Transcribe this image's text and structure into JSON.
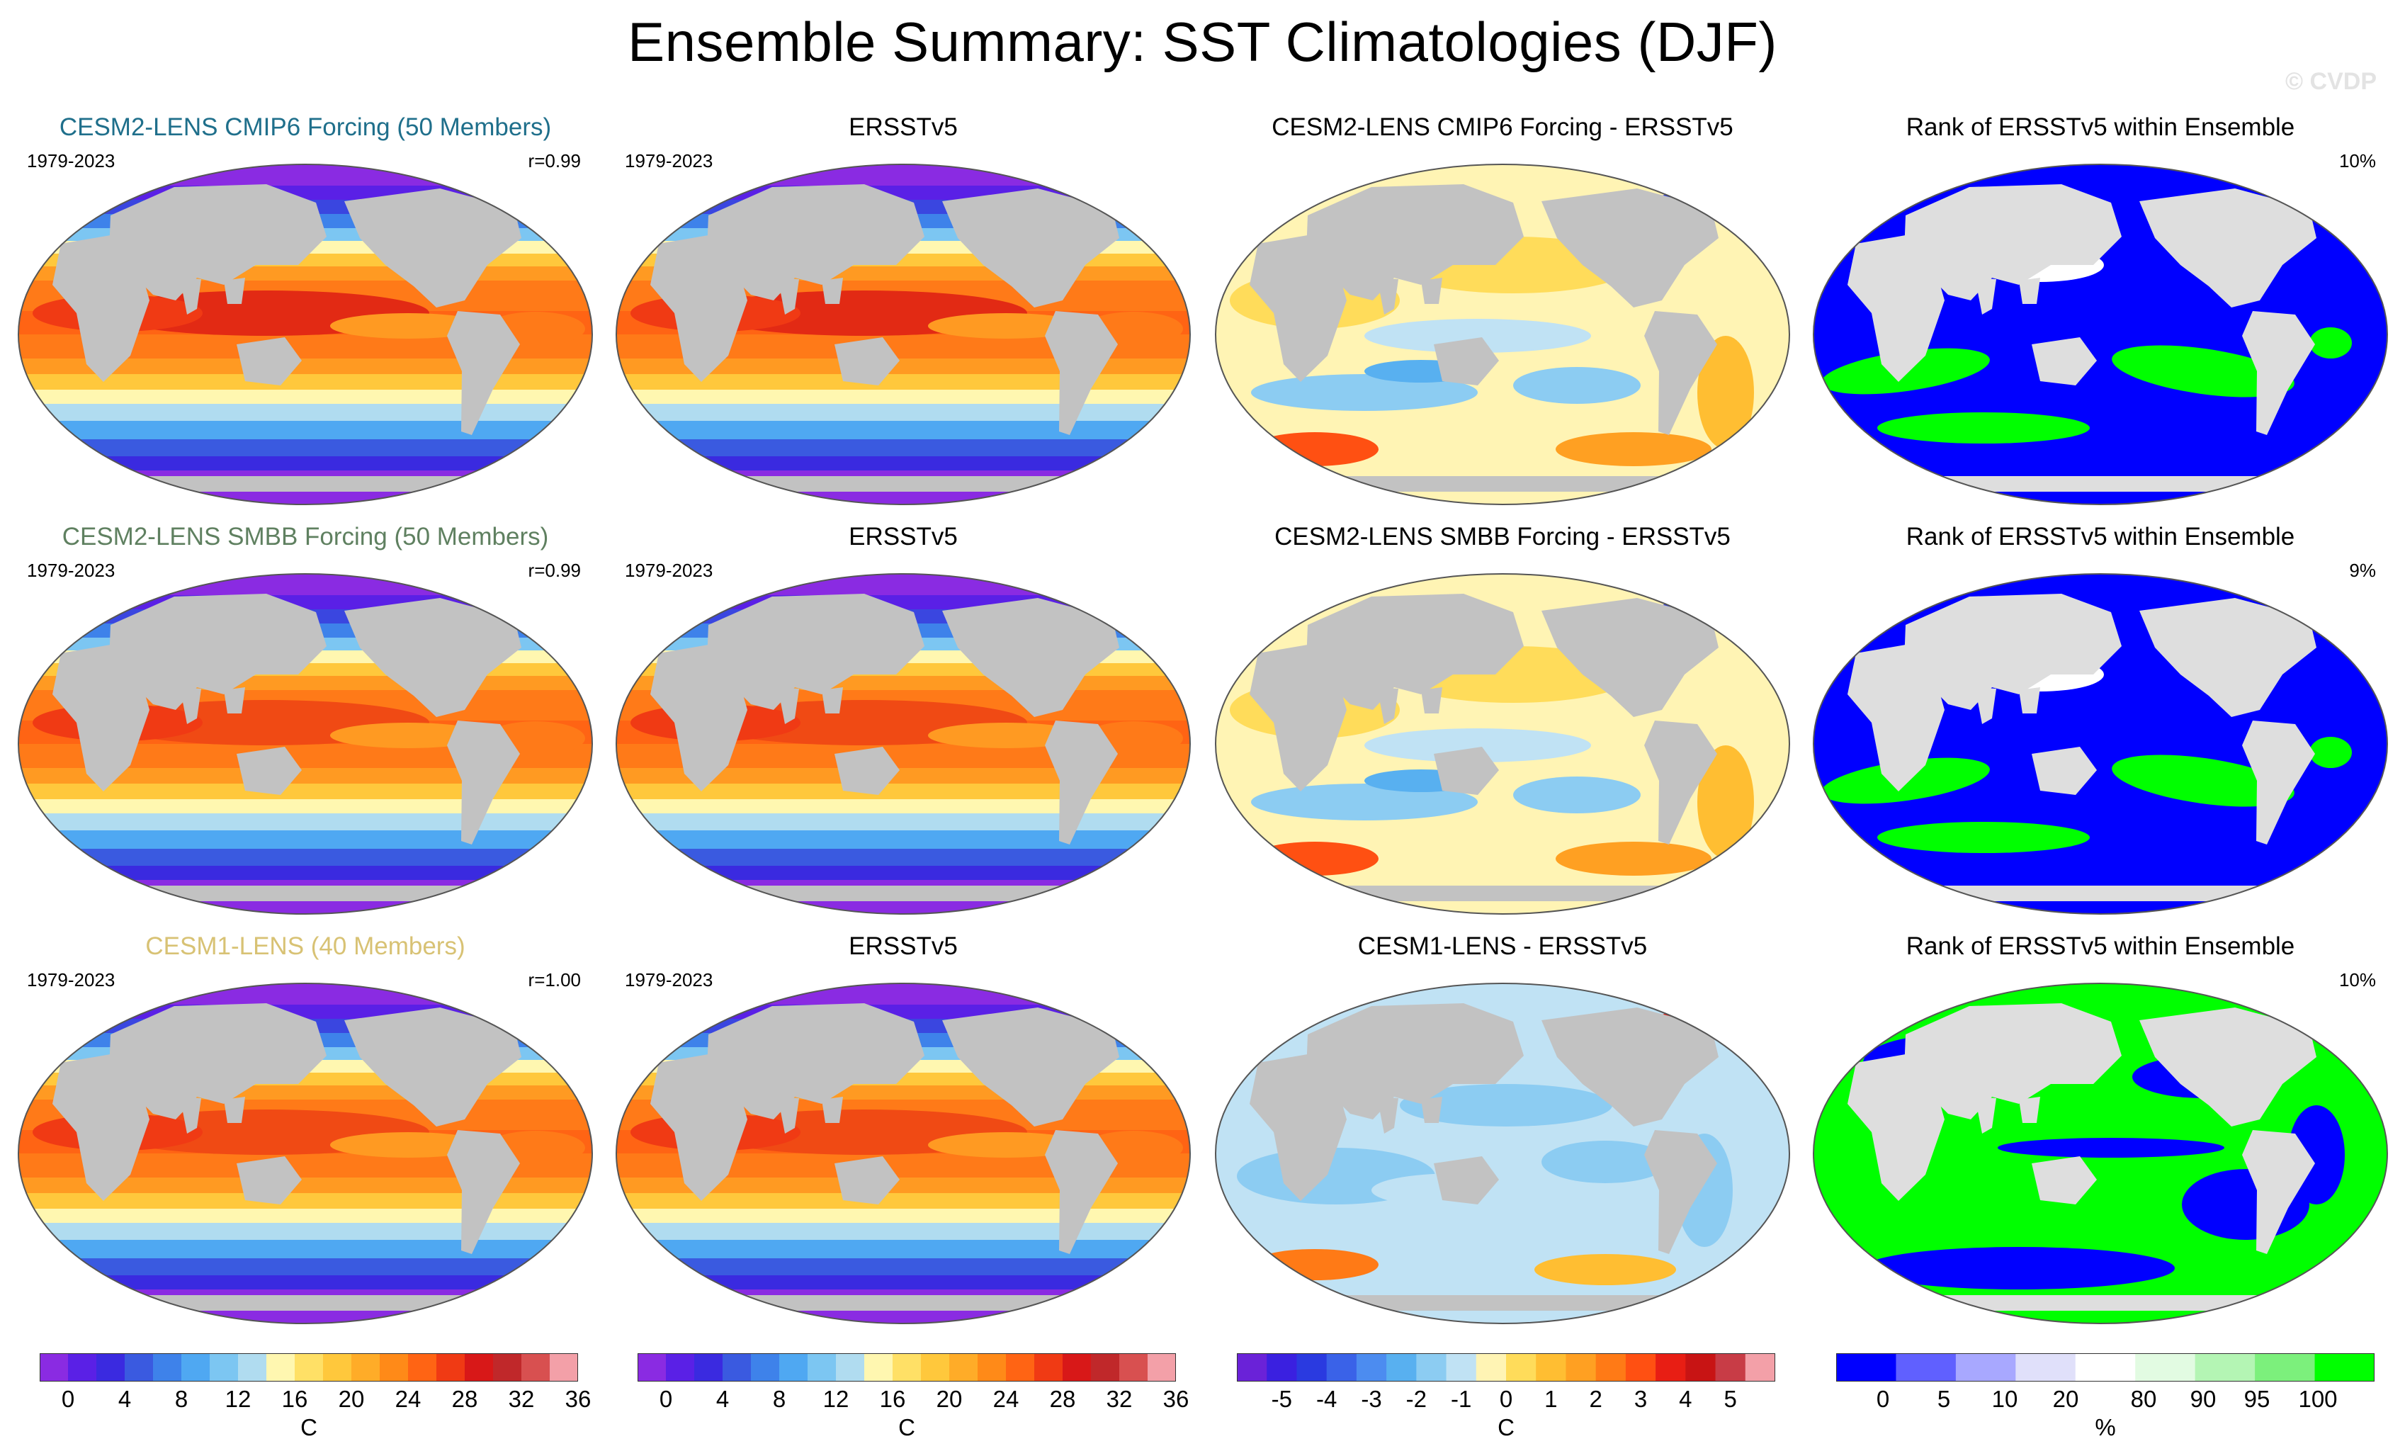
{
  "title": "Ensemble Summary: SST Climatologies (DJF)",
  "copyright": "© CVDP",
  "colors": {
    "row1_title": "#1f6f8b",
    "row2_title": "#5f8060",
    "row3_title": "#d8c274",
    "land": "#c2c2c2",
    "land_light": "#dedede"
  },
  "rows": [
    {
      "model": {
        "title": "CESM2-LENS CMIP6 Forcing (50 Members)",
        "years": "1979-2023",
        "stat": "r=0.99"
      },
      "obs": {
        "title": "ERSSTv5",
        "years": "1979-2023"
      },
      "diff": {
        "title": "CESM2-LENS CMIP6 Forcing - ERSSTv5"
      },
      "rank": {
        "title": "Rank of ERSSTv5 within Ensemble",
        "stat": "10%"
      }
    },
    {
      "model": {
        "title": "CESM2-LENS SMBB Forcing (50 Members)",
        "years": "1979-2023",
        "stat": "r=0.99"
      },
      "obs": {
        "title": "ERSSTv5",
        "years": "1979-2023"
      },
      "diff": {
        "title": "CESM2-LENS SMBB Forcing - ERSSTv5"
      },
      "rank": {
        "title": "Rank of ERSSTv5 within Ensemble",
        "stat": "9%"
      }
    },
    {
      "model": {
        "title": "CESM1-LENS (40 Members)",
        "years": "1979-2023",
        "stat": "r=1.00"
      },
      "obs": {
        "title": "ERSSTv5",
        "years": "1979-2023"
      },
      "diff": {
        "title": "CESM1-LENS - ERSSTv5"
      },
      "rank": {
        "title": "Rank of ERSSTv5 within Ensemble",
        "stat": "10%"
      }
    }
  ],
  "colorbars": [
    {
      "unit": "C",
      "ticks": [
        "0",
        "4",
        "8",
        "12",
        "16",
        "20",
        "24",
        "28",
        "32",
        "36"
      ],
      "colors": [
        "#8a2be2",
        "#5a20e6",
        "#3a2ae0",
        "#3a5ae0",
        "#3e82ea",
        "#4fa8f2",
        "#7cc6f2",
        "#b0dcf0",
        "#fff7b0",
        "#ffe066",
        "#ffc83c",
        "#ffac28",
        "#ff8a18",
        "#ff6414",
        "#f03a14",
        "#d81818",
        "#c0282a",
        "#d85050",
        "#f3a0a8"
      ]
    },
    {
      "unit": "C",
      "ticks": [
        "0",
        "4",
        "8",
        "12",
        "16",
        "20",
        "24",
        "28",
        "32",
        "36"
      ],
      "colors": [
        "#8a2be2",
        "#5a20e6",
        "#3a2ae0",
        "#3a5ae0",
        "#3e82ea",
        "#4fa8f2",
        "#7cc6f2",
        "#b0dcf0",
        "#fff7b0",
        "#ffe066",
        "#ffc83c",
        "#ffac28",
        "#ff8a18",
        "#ff6414",
        "#f03a14",
        "#d81818",
        "#c0282a",
        "#d85050",
        "#f3a0a8"
      ]
    },
    {
      "unit": "C",
      "ticks": [
        "-5",
        "-4",
        "-3",
        "-2",
        "-1",
        "0",
        "1",
        "2",
        "3",
        "4",
        "5"
      ],
      "colors": [
        "#6a22d8",
        "#3a20e0",
        "#2a3ae0",
        "#3a62e8",
        "#4c8cf0",
        "#58b0f0",
        "#8cccf2",
        "#c0e2f4",
        "#fff4b4",
        "#ffdc5a",
        "#ffbe32",
        "#ffa022",
        "#ff7a16",
        "#ff5012",
        "#e81e14",
        "#c81414",
        "#c83c46",
        "#f3a0a8"
      ]
    },
    {
      "unit": "%",
      "ticks": [
        "0",
        "5",
        "10",
        "20",
        "80",
        "90",
        "95",
        "100"
      ],
      "colors": [
        "#0000ff",
        "#6060ff",
        "#a8a8ff",
        "#e0e0fa",
        "#ffffff",
        "#e2fbe2",
        "#b4f5b4",
        "#7cf07c",
        "#00ff00"
      ]
    }
  ]
}
